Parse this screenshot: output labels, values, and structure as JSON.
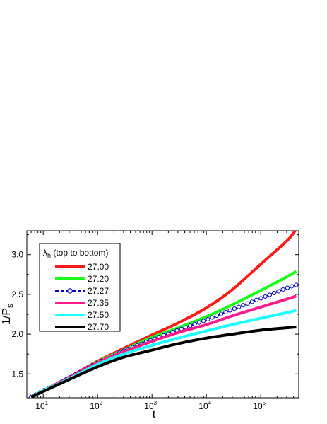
{
  "chart_data": {
    "type": "line",
    "xscale": "log",
    "xlim": [
      5,
      500000
    ],
    "ylim": [
      1.2,
      3.3
    ],
    "xlabel": "t",
    "ylabel": "1/P",
    "ylabel_sub": "s",
    "x_ticks": [
      {
        "value": 10,
        "base": "10",
        "exp": "1"
      },
      {
        "value": 100,
        "base": "10",
        "exp": "2"
      },
      {
        "value": 1000,
        "base": "10",
        "exp": "3"
      },
      {
        "value": 10000,
        "base": "10",
        "exp": "4"
      },
      {
        "value": 100000,
        "base": "10",
        "exp": "5"
      }
    ],
    "y_ticks": [
      {
        "value": 1.5,
        "label": "1.5"
      },
      {
        "value": 2.0,
        "label": "2.0"
      },
      {
        "value": 2.5,
        "label": "2.5"
      },
      {
        "value": 3.0,
        "label": "3.0"
      }
    ],
    "legend": {
      "title_symbol": "λ",
      "title_sub": "h",
      "title_rest": " (top to bottom)",
      "position": "top-left"
    },
    "series": [
      {
        "name": "27.00",
        "color": "#ff1a1a",
        "style": "solid",
        "x": [
          6,
          10,
          30,
          100,
          300,
          1000,
          3000,
          10000,
          30000,
          100000,
          300000,
          450000
        ],
        "y": [
          1.21,
          1.29,
          1.46,
          1.66,
          1.82,
          1.99,
          2.14,
          2.33,
          2.56,
          2.88,
          3.17,
          3.32
        ]
      },
      {
        "name": "27.20",
        "color": "#1aff1a",
        "style": "solid",
        "x": [
          6,
          10,
          30,
          100,
          300,
          1000,
          3000,
          10000,
          30000,
          100000,
          300000,
          450000
        ],
        "y": [
          1.21,
          1.29,
          1.45,
          1.65,
          1.8,
          1.96,
          2.08,
          2.22,
          2.37,
          2.55,
          2.72,
          2.79
        ]
      },
      {
        "name": "27.27",
        "color": "#0000cc",
        "style": "circles",
        "x": [
          6,
          10,
          30,
          100,
          300,
          1000,
          3000,
          10000,
          30000,
          100000,
          300000,
          450000
        ],
        "y": [
          1.21,
          1.29,
          1.45,
          1.64,
          1.79,
          1.93,
          2.05,
          2.18,
          2.31,
          2.45,
          2.58,
          2.62
        ]
      },
      {
        "name": "27.35",
        "color": "#ff1a8c",
        "style": "solid",
        "x": [
          6,
          10,
          30,
          100,
          300,
          1000,
          3000,
          10000,
          30000,
          100000,
          300000,
          450000
        ],
        "y": [
          1.21,
          1.29,
          1.45,
          1.64,
          1.78,
          1.91,
          2.02,
          2.12,
          2.23,
          2.34,
          2.44,
          2.48
        ]
      },
      {
        "name": "27.50",
        "color": "#1affff",
        "style": "solid",
        "x": [
          6,
          10,
          30,
          100,
          300,
          1000,
          3000,
          10000,
          30000,
          100000,
          300000,
          450000
        ],
        "y": [
          1.21,
          1.29,
          1.44,
          1.62,
          1.75,
          1.86,
          1.95,
          2.04,
          2.12,
          2.2,
          2.27,
          2.3
        ]
      },
      {
        "name": "27.70",
        "color": "#000000",
        "style": "solid",
        "x": [
          6,
          10,
          30,
          100,
          300,
          1000,
          3000,
          10000,
          30000,
          100000,
          300000,
          450000
        ],
        "y": [
          1.21,
          1.28,
          1.43,
          1.59,
          1.71,
          1.8,
          1.88,
          1.95,
          2.0,
          2.05,
          2.08,
          2.09
        ]
      }
    ]
  }
}
